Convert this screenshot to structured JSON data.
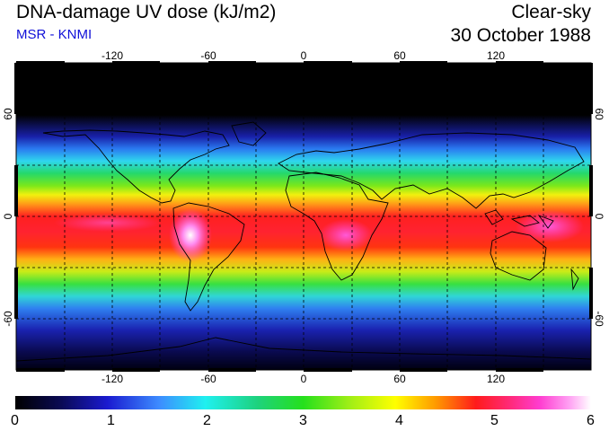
{
  "header": {
    "title": "DNA-damage UV dose (kJ/m2)",
    "subtitle": "MSR - KNMI",
    "condition": "Clear-sky",
    "date": "30 October 1988"
  },
  "map": {
    "lon_labels": [
      "-120",
      "-60",
      "0",
      "60",
      "120"
    ],
    "lat_labels": [
      "60",
      "0",
      "-60"
    ],
    "lon_range": [
      -180,
      180
    ],
    "lat_range": [
      -90,
      90
    ],
    "graticule": "dashed 30-degree grid"
  },
  "colorbar": {
    "labels": [
      "0",
      "1",
      "2",
      "3",
      "4",
      "5",
      "6"
    ],
    "range": [
      0,
      6
    ]
  },
  "colors": {
    "subtitle": "#1010d8",
    "scale": [
      "#000000",
      "#1a1ad0",
      "#1ff0f0",
      "#25e01c",
      "#ffff00",
      "#ff1b1b",
      "#ff3ccf",
      "#ffffff"
    ]
  }
}
